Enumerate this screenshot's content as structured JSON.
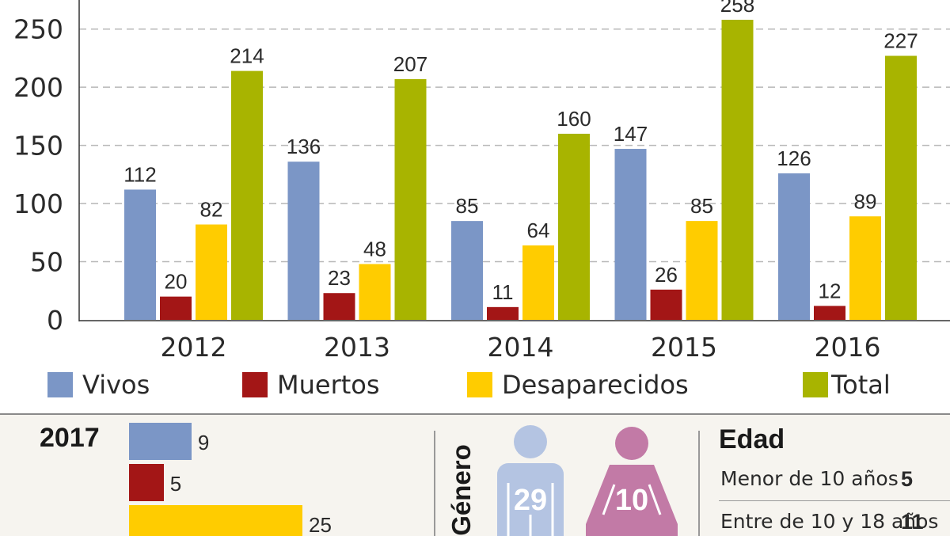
{
  "chart_data": {
    "type": "bar",
    "categories": [
      "2012",
      "2013",
      "2014",
      "2015",
      "2016"
    ],
    "series": [
      {
        "name": "Vivos",
        "color": "#7b96c6",
        "values": [
          112,
          136,
          85,
          147,
          126
        ]
      },
      {
        "name": "Muertos",
        "color": "#a31616",
        "values": [
          20,
          23,
          11,
          26,
          12
        ]
      },
      {
        "name": "Desaparecidos",
        "color": "#ffcc00",
        "values": [
          82,
          48,
          64,
          85,
          89
        ]
      },
      {
        "name": "Total",
        "color": "#a8b400",
        "values": [
          214,
          207,
          160,
          258,
          227
        ]
      }
    ],
    "yticks": [
      0,
      50,
      100,
      150,
      200,
      250
    ],
    "ylim": [
      0,
      275
    ],
    "grid": true
  },
  "legend": [
    {
      "label": "Vivos",
      "color": "#7b96c6"
    },
    {
      "label": "Muertos",
      "color": "#a31616"
    },
    {
      "label": "Desaparecidos",
      "color": "#ffcc00"
    },
    {
      "label": "Total",
      "color": "#a8b400"
    }
  ],
  "year_2017": {
    "label": "2017",
    "bars": [
      {
        "name": "Vivos",
        "value": 9,
        "color": "#7b96c6"
      },
      {
        "name": "Muertos",
        "value": 5,
        "color": "#a31616"
      },
      {
        "name": "Desaparecidos",
        "value": 25,
        "color": "#ffcc00"
      }
    ]
  },
  "genero": {
    "title": "Género",
    "male": {
      "value": "29",
      "color": "#b4c4e2"
    },
    "female": {
      "value": "10",
      "color": "#c27aa6"
    }
  },
  "edad": {
    "title": "Edad",
    "rows": [
      {
        "label": "Menor de 10 años",
        "value": "5"
      },
      {
        "label": "Entre de 10 y 18 años",
        "value": "11"
      }
    ]
  }
}
